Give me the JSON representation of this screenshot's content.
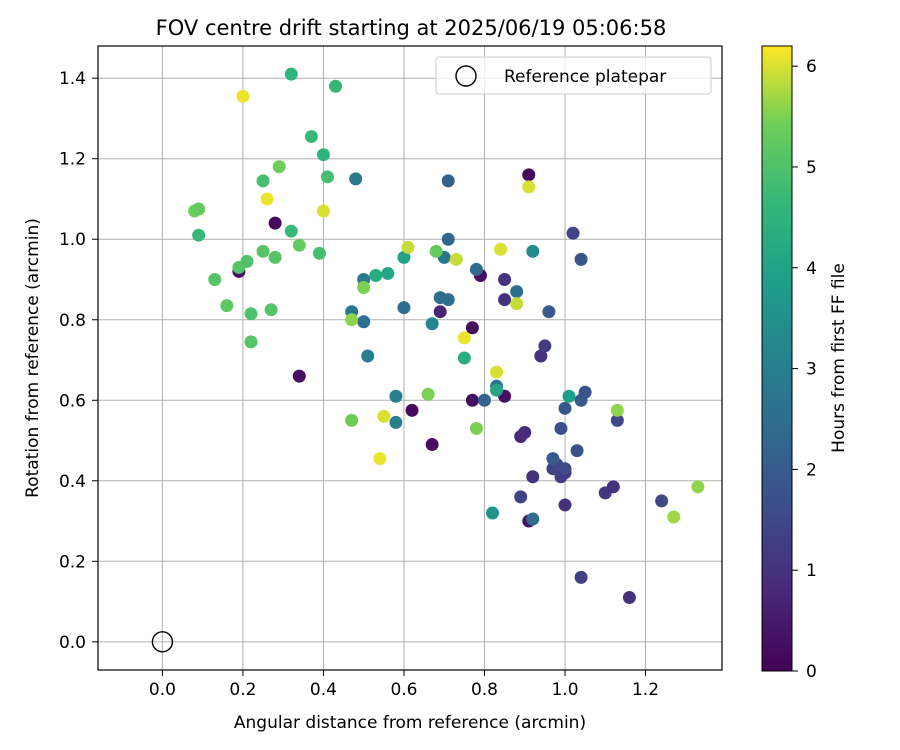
{
  "chart_data": {
    "type": "scatter",
    "title": "FOV centre drift starting at 2025/06/19 05:06:58",
    "xlabel": "Angular distance from reference (arcmin)",
    "ylabel": "Rotation from reference (arcmin)",
    "xlim": [
      -0.16,
      1.39
    ],
    "ylim": [
      -0.07,
      1.48
    ],
    "xticks": [
      "0.0",
      "0.2",
      "0.4",
      "0.6",
      "0.8",
      "1.0",
      "1.2"
    ],
    "xtick_values": [
      0.0,
      0.2,
      0.4,
      0.6,
      0.8,
      1.0,
      1.2
    ],
    "yticks": [
      "0.0",
      "0.2",
      "0.4",
      "0.6",
      "0.8",
      "1.0",
      "1.2",
      "1.4"
    ],
    "ytick_values": [
      0.0,
      0.2,
      0.4,
      0.6,
      0.8,
      1.0,
      1.2,
      1.4
    ],
    "grid": true,
    "legend": {
      "placement": "top-right",
      "label": "Reference platepar"
    },
    "reference_point": [
      0.0,
      0.0
    ],
    "colorbar": {
      "label": "Hours from first FF file",
      "colormap": "viridis",
      "range": [
        0,
        6.2
      ],
      "ticks": [
        "0",
        "1",
        "2",
        "3",
        "4",
        "5",
        "6"
      ],
      "tick_values": [
        0,
        1,
        2,
        3,
        4,
        5,
        6
      ]
    },
    "points": [
      [
        0.91,
        1.16,
        0.2
      ],
      [
        0.28,
        1.04,
        0.2
      ],
      [
        0.19,
        0.92,
        0.3
      ],
      [
        0.34,
        0.66,
        0.3
      ],
      [
        0.62,
        0.575,
        0.2
      ],
      [
        0.67,
        0.49,
        0.3
      ],
      [
        0.77,
        0.78,
        0.2
      ],
      [
        0.79,
        0.91,
        0.3
      ],
      [
        0.77,
        0.6,
        0.3
      ],
      [
        0.85,
        0.61,
        0.3
      ],
      [
        0.91,
        0.3,
        0.4
      ],
      [
        0.69,
        0.82,
        0.7
      ],
      [
        0.85,
        0.9,
        1.0
      ],
      [
        0.85,
        0.85,
        1.0
      ],
      [
        0.94,
        0.71,
        1.0
      ],
      [
        0.95,
        0.735,
        1.2
      ],
      [
        0.89,
        0.51,
        0.8
      ],
      [
        0.9,
        0.52,
        0.9
      ],
      [
        0.92,
        0.41,
        1.0
      ],
      [
        0.89,
        0.36,
        1.4
      ],
      [
        1.0,
        0.34,
        1.0
      ],
      [
        0.97,
        0.43,
        1.4
      ],
      [
        0.98,
        0.44,
        1.5
      ],
      [
        1.0,
        0.42,
        1.1
      ],
      [
        0.99,
        0.41,
        1.3
      ],
      [
        1.0,
        0.43,
        1.6
      ],
      [
        1.1,
        0.37,
        1.1
      ],
      [
        1.12,
        0.385,
        1.0
      ],
      [
        1.04,
        0.16,
        1.3
      ],
      [
        1.16,
        0.11,
        1.0
      ],
      [
        1.24,
        0.35,
        1.5
      ],
      [
        1.13,
        0.55,
        1.5
      ],
      [
        1.03,
        0.475,
        1.8
      ],
      [
        0.97,
        0.455,
        2.0
      ],
      [
        0.99,
        0.53,
        1.7
      ],
      [
        1.0,
        0.58,
        1.9
      ],
      [
        1.04,
        0.6,
        2.0
      ],
      [
        1.05,
        0.62,
        1.8
      ],
      [
        1.02,
        1.015,
        1.4
      ],
      [
        1.04,
        0.95,
        1.8
      ],
      [
        0.96,
        0.82,
        2.0
      ],
      [
        0.88,
        0.87,
        2.5
      ],
      [
        0.78,
        0.925,
        2.4
      ],
      [
        0.71,
        1.145,
        2.2
      ],
      [
        0.71,
        1.0,
        2.3
      ],
      [
        0.7,
        0.955,
        2.8
      ],
      [
        0.69,
        0.855,
        2.5
      ],
      [
        0.71,
        0.85,
        2.5
      ],
      [
        0.6,
        0.83,
        2.5
      ],
      [
        0.48,
        1.15,
        2.8
      ],
      [
        0.5,
        0.9,
        2.8
      ],
      [
        0.5,
        0.795,
        2.6
      ],
      [
        0.47,
        0.82,
        2.8
      ],
      [
        0.51,
        0.71,
        3.0
      ],
      [
        0.58,
        0.61,
        3.0
      ],
      [
        0.58,
        0.545,
        3.0
      ],
      [
        0.8,
        0.6,
        2.3
      ],
      [
        0.83,
        0.635,
        2.8
      ],
      [
        0.92,
        0.305,
        2.5
      ],
      [
        0.92,
        0.97,
        3.4
      ],
      [
        0.82,
        0.32,
        3.6
      ],
      [
        0.67,
        0.79,
        3.2
      ],
      [
        0.6,
        0.955,
        4.0
      ],
      [
        0.56,
        0.915,
        4.1
      ],
      [
        0.53,
        0.91,
        4.3
      ],
      [
        0.75,
        0.705,
        4.3
      ],
      [
        1.01,
        0.61,
        3.9
      ],
      [
        0.83,
        0.625,
        4.1
      ],
      [
        0.32,
        1.41,
        4.5
      ],
      [
        0.43,
        1.38,
        4.6
      ],
      [
        0.37,
        1.255,
        4.7
      ],
      [
        0.4,
        1.21,
        4.5
      ],
      [
        0.41,
        1.155,
        4.9
      ],
      [
        0.25,
        1.145,
        4.9
      ],
      [
        0.09,
        1.01,
        4.7
      ],
      [
        0.32,
        1.02,
        4.7
      ],
      [
        0.39,
        0.965,
        4.9
      ],
      [
        0.21,
        0.945,
        5.0
      ],
      [
        0.25,
        0.97,
        5.1
      ],
      [
        0.28,
        0.955,
        5.1
      ],
      [
        0.19,
        0.93,
        5.1
      ],
      [
        0.13,
        0.9,
        5.1
      ],
      [
        0.16,
        0.835,
        5.2
      ],
      [
        0.22,
        0.815,
        5.0
      ],
      [
        0.27,
        0.825,
        5.1
      ],
      [
        0.22,
        0.745,
        5.1
      ],
      [
        0.29,
        1.18,
        5.4
      ],
      [
        0.08,
        1.07,
        5.4
      ],
      [
        0.09,
        1.075,
        5.3
      ],
      [
        0.34,
        0.985,
        5.3
      ],
      [
        0.68,
        0.97,
        5.3
      ],
      [
        0.66,
        0.615,
        5.5
      ],
      [
        0.47,
        0.55,
        5.4
      ],
      [
        0.47,
        0.8,
        5.6
      ],
      [
        0.5,
        0.88,
        5.5
      ],
      [
        0.78,
        0.53,
        5.5
      ],
      [
        1.13,
        0.575,
        5.6
      ],
      [
        1.33,
        0.385,
        5.6
      ],
      [
        1.27,
        0.31,
        5.7
      ],
      [
        0.88,
        0.84,
        5.9
      ],
      [
        0.2,
        1.355,
        6.1
      ],
      [
        0.26,
        1.1,
        6.1
      ],
      [
        0.4,
        1.07,
        6.0
      ],
      [
        0.61,
        0.98,
        5.9
      ],
      [
        0.73,
        0.95,
        5.9
      ],
      [
        0.84,
        0.975,
        6.0
      ],
      [
        0.91,
        1.13,
        6.0
      ],
      [
        0.75,
        0.755,
        6.1
      ],
      [
        0.83,
        0.67,
        6.0
      ],
      [
        0.55,
        0.56,
        6.0
      ],
      [
        0.54,
        0.455,
        6.1
      ]
    ]
  }
}
